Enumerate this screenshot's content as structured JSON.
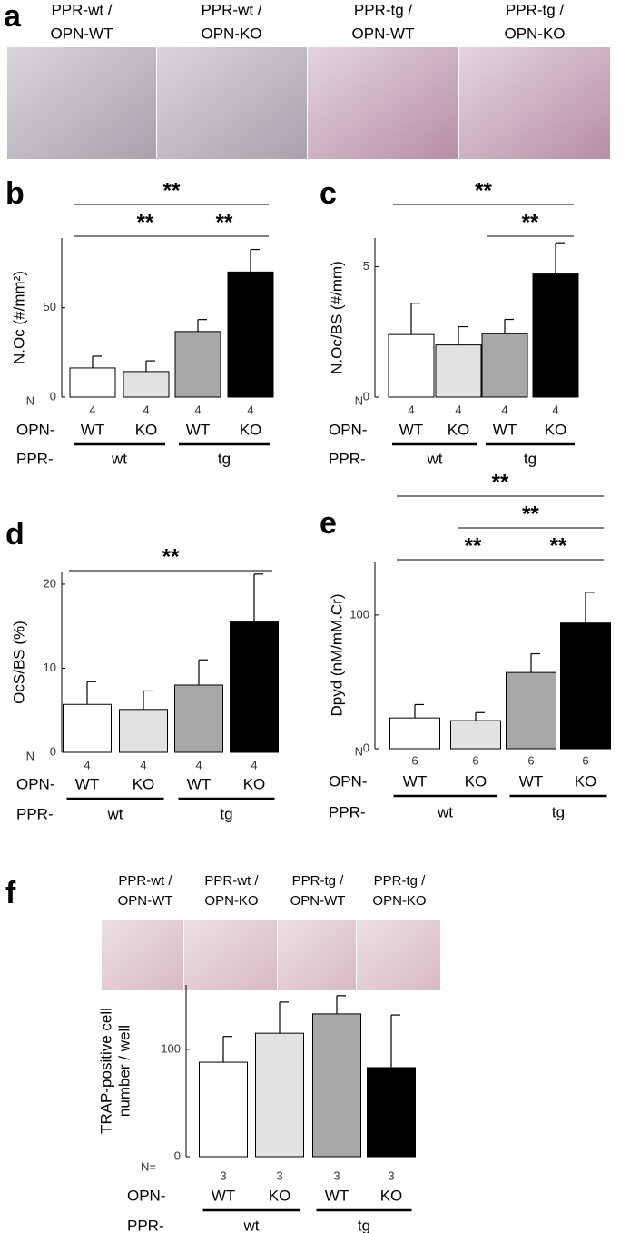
{
  "panel_a": {
    "label": "a",
    "captions": [
      [
        "PPR-wt /",
        "OPN-WT"
      ],
      [
        "PPR-wt /",
        "OPN-KO"
      ],
      [
        "PPR-tg /",
        "OPN-WT"
      ],
      [
        "PPR-tg /",
        "OPN-KO"
      ]
    ]
  },
  "panel_f": {
    "captions": [
      [
        "PPR-wt /",
        "OPN-WT"
      ],
      [
        "PPR-wt /",
        "OPN-KO"
      ],
      [
        "PPR-tg /",
        "OPN-WT"
      ],
      [
        "PPR-tg /",
        "OPN-KO"
      ]
    ]
  },
  "chart_data": [
    {
      "type": "bar",
      "panel": "b",
      "ylabel": [
        "N.Oc (#/mm²)"
      ],
      "ylim": [
        0,
        89
      ],
      "yticks": [
        0,
        50
      ],
      "n_label": "N",
      "n_values": [
        4,
        4,
        4,
        4
      ],
      "row_label": "OPN-",
      "categories": [
        "WT",
        "KO",
        "WT",
        "KO"
      ],
      "group_label": "PPR-",
      "groups": [
        "wt",
        "tg"
      ],
      "values": [
        16.3,
        14.3,
        36.7,
        70
      ],
      "errors": [
        6.6,
        6,
        6.7,
        12.6
      ],
      "colors": [
        "#ffffff",
        "#e2e2e2",
        "#a8a8a8",
        "#000000"
      ],
      "annotations": [
        {
          "text": "**",
          "from": 0,
          "to": 2
        },
        {
          "text": "**",
          "from": 2,
          "to": 3
        },
        {
          "text": "**",
          "from": 0,
          "to": 3
        }
      ]
    },
    {
      "type": "bar",
      "panel": "c",
      "ylabel": [
        "N.Oc/BS (#/mm)"
      ],
      "ylim": [
        0,
        6.1
      ],
      "yticks": [
        0,
        5
      ],
      "n_label": "N",
      "n_values": [
        4,
        4,
        4,
        4
      ],
      "row_label": "OPN-",
      "categories": [
        "WT",
        "KO",
        "WT",
        "KO"
      ],
      "group_label": "PPR-",
      "groups": [
        "wt",
        "tg"
      ],
      "values": [
        2.4,
        2.0,
        2.43,
        4.72
      ],
      "errors": [
        1.2,
        0.7,
        0.55,
        1.2
      ],
      "colors": [
        "#ffffff",
        "#e2e2e2",
        "#a8a8a8",
        "#000000"
      ],
      "annotations": [
        {
          "text": "**",
          "from": 2,
          "to": 3
        },
        {
          "text": "**",
          "from": 0,
          "to": 3
        }
      ]
    },
    {
      "type": "bar",
      "panel": "d",
      "ylabel": [
        "OcS/BS (%)"
      ],
      "ylim": [
        0,
        21.4
      ],
      "yticks": [
        0,
        10,
        20
      ],
      "n_label": "N",
      "n_values": [
        4,
        4,
        4,
        4
      ],
      "row_label": "OPN-",
      "categories": [
        "WT",
        "KO",
        "WT",
        "KO"
      ],
      "group_label": "PPR-",
      "groups": [
        "wt",
        "tg"
      ],
      "values": [
        5.7,
        5.1,
        8.0,
        15.5
      ],
      "errors": [
        2.7,
        2.2,
        3.0,
        5.7
      ],
      "colors": [
        "#ffffff",
        "#e2e2e2",
        "#a8a8a8",
        "#000000"
      ],
      "annotations": [
        {
          "text": "**",
          "from": 0,
          "to": 3
        }
      ]
    },
    {
      "type": "bar",
      "panel": "e",
      "ylabel": [
        "Dpyd (nM/mM.Cr)"
      ],
      "ylim": [
        0,
        140
      ],
      "yticks": [
        0,
        100
      ],
      "n_label": "N",
      "n_values": [
        6,
        6,
        6,
        6
      ],
      "row_label": "OPN-",
      "categories": [
        "WT",
        "KO",
        "WT",
        "KO"
      ],
      "group_label": "PPR-",
      "groups": [
        "wt",
        "tg"
      ],
      "values": [
        23,
        21,
        57,
        94
      ],
      "errors": [
        10,
        6,
        14,
        23
      ],
      "colors": [
        "#ffffff",
        "#e2e2e2",
        "#a8a8a8",
        "#000000"
      ],
      "annotations": [
        {
          "text": "**",
          "from": 0,
          "to": 2
        },
        {
          "text": "**",
          "from": 2,
          "to": 3
        },
        {
          "text": "**",
          "from": 1,
          "to": 3
        },
        {
          "text": "**",
          "from": 0,
          "to": 3
        }
      ]
    },
    {
      "type": "bar",
      "panel": "f",
      "ylabel": [
        "TRAP-positive cell",
        "number / well"
      ],
      "ylim": [
        0,
        160
      ],
      "yticks": [
        0,
        100
      ],
      "n_label": "N=",
      "n_values": [
        3,
        3,
        3,
        3
      ],
      "row_label": "OPN-",
      "categories": [
        "WT",
        "KO",
        "WT",
        "KO"
      ],
      "group_label": "PPR-",
      "groups": [
        "wt",
        "tg"
      ],
      "values": [
        88,
        115,
        133,
        83
      ],
      "errors": [
        24,
        29,
        17,
        49
      ],
      "colors": [
        "#ffffff",
        "#e2e2e2",
        "#a8a8a8",
        "#000000"
      ],
      "annotations": []
    }
  ]
}
